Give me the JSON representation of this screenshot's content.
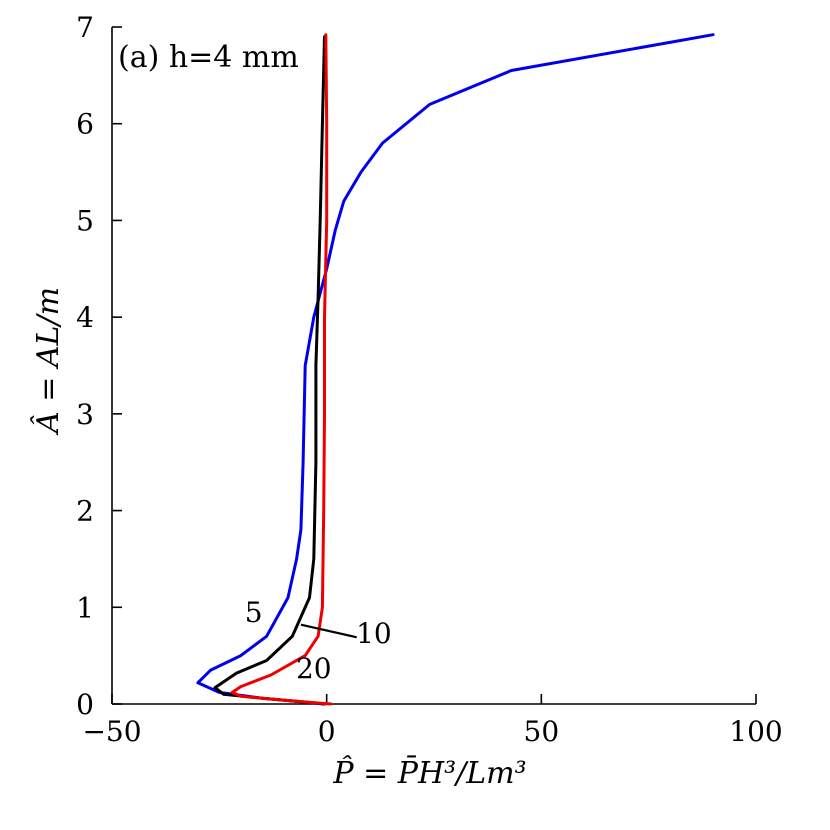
{
  "chart_data": {
    "type": "line",
    "title": "",
    "panel_label": "(a) h=4 mm",
    "xlabel": "P̂ = P̄H³/Lm³",
    "ylabel": "Â = AL/m",
    "xlim": [
      -50,
      100
    ],
    "ylim": [
      0,
      7
    ],
    "xticks": [
      -50,
      0,
      50,
      100
    ],
    "xtick_labels": [
      "−50",
      "0",
      "50",
      "100"
    ],
    "yticks": [
      0,
      1,
      2,
      3,
      4,
      5,
      6,
      7
    ],
    "ytick_labels": [
      "0",
      "1",
      "2",
      "3",
      "4",
      "5",
      "6",
      "7"
    ],
    "grid": false,
    "legend": "none",
    "series": [
      {
        "name": "5",
        "color": "#0000ee",
        "points": [
          [
            -0.5,
            0
          ],
          [
            -5,
            0.02
          ],
          [
            -15,
            0.06
          ],
          [
            -25,
            0.12
          ],
          [
            -30,
            0.22
          ],
          [
            -27,
            0.35
          ],
          [
            -20,
            0.5
          ],
          [
            -14,
            0.7
          ],
          [
            -9,
            1.1
          ],
          [
            -7,
            1.5
          ],
          [
            -6,
            1.8
          ],
          [
            -5.5,
            2.5
          ],
          [
            -5,
            3.5
          ],
          [
            -3,
            4.0
          ],
          [
            0,
            4.5
          ],
          [
            2,
            4.9
          ],
          [
            4,
            5.2
          ],
          [
            8,
            5.5
          ],
          [
            13,
            5.8
          ],
          [
            24,
            6.2
          ],
          [
            43,
            6.55
          ],
          [
            90,
            6.92
          ]
        ]
      },
      {
        "name": "10",
        "color": "#000000",
        "points": [
          [
            -0.5,
            0
          ],
          [
            -5,
            0.02
          ],
          [
            -15,
            0.06
          ],
          [
            -24,
            0.1
          ],
          [
            -26,
            0.17
          ],
          [
            -21,
            0.32
          ],
          [
            -14,
            0.45
          ],
          [
            -8,
            0.7
          ],
          [
            -4,
            1.1
          ],
          [
            -3,
            1.5
          ],
          [
            -2.5,
            2.5
          ],
          [
            -2.5,
            3.5
          ],
          [
            -2,
            4.2
          ],
          [
            -1.5,
            5
          ],
          [
            -1,
            6
          ],
          [
            -0.5,
            6.9
          ]
        ]
      },
      {
        "name": "20",
        "color": "#ee0000",
        "points": [
          [
            1,
            0
          ],
          [
            -2,
            0.01
          ],
          [
            -10,
            0.04
          ],
          [
            -20,
            0.08
          ],
          [
            -22,
            0.12
          ],
          [
            -20,
            0.18
          ],
          [
            -13,
            0.3
          ],
          [
            -5,
            0.5
          ],
          [
            -2,
            0.7
          ],
          [
            -1,
            1.0
          ],
          [
            -0.7,
            2
          ],
          [
            -0.5,
            3
          ],
          [
            -0.5,
            4
          ],
          [
            0,
            5
          ],
          [
            0,
            6
          ],
          [
            -0.2,
            6.92
          ]
        ]
      }
    ],
    "annotations": [
      {
        "text": "5",
        "x": -17,
        "y": 0.85
      },
      {
        "text": "10",
        "x": 11,
        "y": 0.63
      },
      {
        "text": "20",
        "x": -3,
        "y": 0.27
      }
    ]
  }
}
